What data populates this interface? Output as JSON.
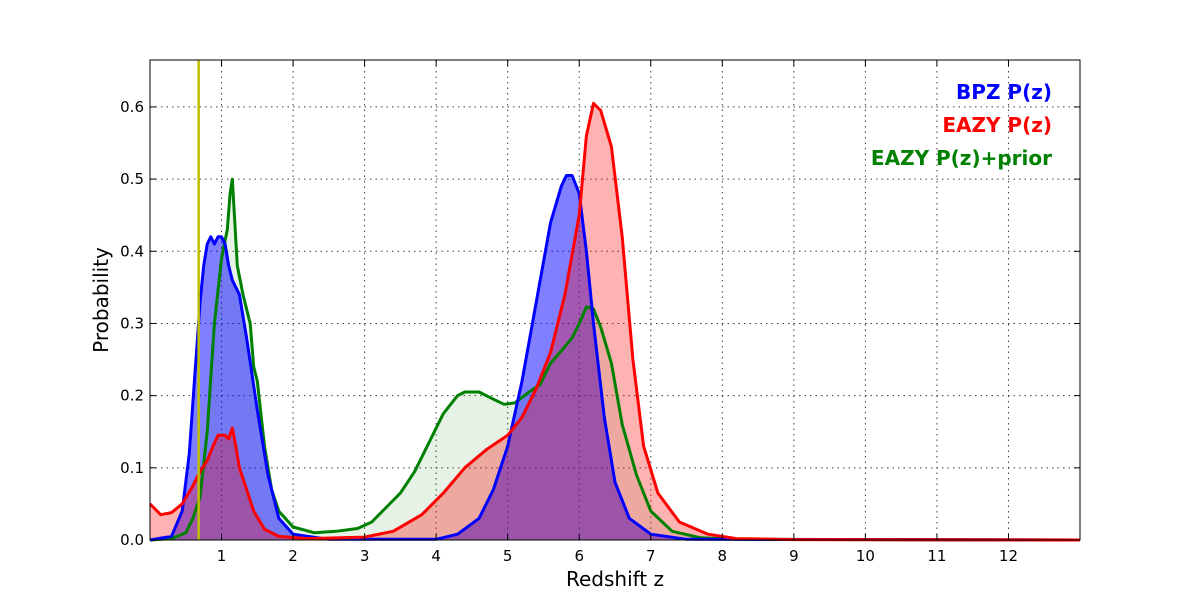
{
  "chart_data": {
    "type": "area",
    "title": "",
    "xlabel": "Redshift z",
    "ylabel": "Probability",
    "xlim": [
      0,
      13
    ],
    "ylim": [
      0,
      0.665
    ],
    "xticks": [
      1,
      2,
      3,
      4,
      5,
      6,
      7,
      8,
      9,
      10,
      11,
      12
    ],
    "yticks": [
      0.0,
      0.1,
      0.2,
      0.3,
      0.4,
      0.5,
      0.6
    ],
    "ytick_labels": [
      "0.0",
      "0.1",
      "0.2",
      "0.3",
      "0.4",
      "0.5",
      "0.6"
    ],
    "grid": true,
    "legend_position": "top-right",
    "marker_line": {
      "x": 0.68,
      "color": "#bfbf00"
    },
    "series": [
      {
        "name": "EAZY P(z)+prior",
        "color": "#008000",
        "fill": "#008000",
        "fill_opacity": 0.1,
        "points": [
          [
            0,
            0
          ],
          [
            0.3,
            0.002
          ],
          [
            0.5,
            0.01
          ],
          [
            0.6,
            0.03
          ],
          [
            0.7,
            0.06
          ],
          [
            0.8,
            0.15
          ],
          [
            0.9,
            0.3
          ],
          [
            1.0,
            0.39
          ],
          [
            1.08,
            0.43
          ],
          [
            1.12,
            0.48
          ],
          [
            1.15,
            0.5
          ],
          [
            1.18,
            0.45
          ],
          [
            1.22,
            0.38
          ],
          [
            1.3,
            0.34
          ],
          [
            1.4,
            0.3
          ],
          [
            1.45,
            0.24
          ],
          [
            1.5,
            0.22
          ],
          [
            1.6,
            0.13
          ],
          [
            1.7,
            0.07
          ],
          [
            1.8,
            0.04
          ],
          [
            2.0,
            0.018
          ],
          [
            2.3,
            0.01
          ],
          [
            2.6,
            0.012
          ],
          [
            2.9,
            0.016
          ],
          [
            3.1,
            0.025
          ],
          [
            3.3,
            0.045
          ],
          [
            3.5,
            0.065
          ],
          [
            3.7,
            0.095
          ],
          [
            3.9,
            0.135
          ],
          [
            4.1,
            0.175
          ],
          [
            4.3,
            0.2
          ],
          [
            4.4,
            0.205
          ],
          [
            4.6,
            0.205
          ],
          [
            4.8,
            0.195
          ],
          [
            4.95,
            0.188
          ],
          [
            5.1,
            0.19
          ],
          [
            5.3,
            0.205
          ],
          [
            5.45,
            0.215
          ],
          [
            5.6,
            0.245
          ],
          [
            5.75,
            0.262
          ],
          [
            5.9,
            0.28
          ],
          [
            6.0,
            0.3
          ],
          [
            6.1,
            0.323
          ],
          [
            6.2,
            0.32
          ],
          [
            6.3,
            0.295
          ],
          [
            6.45,
            0.245
          ],
          [
            6.6,
            0.16
          ],
          [
            6.8,
            0.09
          ],
          [
            7.0,
            0.04
          ],
          [
            7.3,
            0.012
          ],
          [
            7.7,
            0.003
          ],
          [
            8.2,
            0.001
          ],
          [
            13,
            0
          ]
        ]
      },
      {
        "name": "BPZ P(z)",
        "color": "#0000ff",
        "fill": "#0000ff",
        "fill_opacity": 0.5,
        "points": [
          [
            0,
            0
          ],
          [
            0.3,
            0.005
          ],
          [
            0.45,
            0.04
          ],
          [
            0.55,
            0.12
          ],
          [
            0.62,
            0.22
          ],
          [
            0.7,
            0.33
          ],
          [
            0.75,
            0.38
          ],
          [
            0.8,
            0.41
          ],
          [
            0.85,
            0.42
          ],
          [
            0.9,
            0.41
          ],
          [
            0.95,
            0.42
          ],
          [
            1.0,
            0.42
          ],
          [
            1.05,
            0.41
          ],
          [
            1.1,
            0.38
          ],
          [
            1.15,
            0.36
          ],
          [
            1.25,
            0.34
          ],
          [
            1.35,
            0.28
          ],
          [
            1.5,
            0.18
          ],
          [
            1.65,
            0.09
          ],
          [
            1.8,
            0.03
          ],
          [
            2.0,
            0.008
          ],
          [
            2.5,
            0.001
          ],
          [
            4.0,
            0.001
          ],
          [
            4.3,
            0.008
          ],
          [
            4.6,
            0.03
          ],
          [
            4.8,
            0.07
          ],
          [
            5.0,
            0.13
          ],
          [
            5.2,
            0.22
          ],
          [
            5.4,
            0.33
          ],
          [
            5.6,
            0.44
          ],
          [
            5.75,
            0.49
          ],
          [
            5.82,
            0.505
          ],
          [
            5.9,
            0.505
          ],
          [
            6.0,
            0.48
          ],
          [
            6.1,
            0.4
          ],
          [
            6.2,
            0.3
          ],
          [
            6.35,
            0.17
          ],
          [
            6.5,
            0.08
          ],
          [
            6.7,
            0.03
          ],
          [
            7.0,
            0.008
          ],
          [
            7.5,
            0.001
          ],
          [
            13,
            0
          ]
        ]
      },
      {
        "name": "EAZY P(z)",
        "color": "#ff0000",
        "fill": "#ff0000",
        "fill_opacity": 0.3,
        "points": [
          [
            0,
            0.05
          ],
          [
            0.05,
            0.045
          ],
          [
            0.15,
            0.035
          ],
          [
            0.3,
            0.038
          ],
          [
            0.45,
            0.05
          ],
          [
            0.6,
            0.075
          ],
          [
            0.7,
            0.095
          ],
          [
            0.8,
            0.11
          ],
          [
            0.88,
            0.13
          ],
          [
            0.95,
            0.145
          ],
          [
            1.05,
            0.145
          ],
          [
            1.1,
            0.14
          ],
          [
            1.15,
            0.155
          ],
          [
            1.2,
            0.13
          ],
          [
            1.25,
            0.1
          ],
          [
            1.35,
            0.07
          ],
          [
            1.45,
            0.04
          ],
          [
            1.6,
            0.015
          ],
          [
            1.8,
            0.005
          ],
          [
            2.2,
            0.002
          ],
          [
            3.0,
            0.004
          ],
          [
            3.4,
            0.012
          ],
          [
            3.8,
            0.035
          ],
          [
            4.1,
            0.065
          ],
          [
            4.4,
            0.1
          ],
          [
            4.7,
            0.125
          ],
          [
            5.0,
            0.145
          ],
          [
            5.2,
            0.17
          ],
          [
            5.4,
            0.21
          ],
          [
            5.6,
            0.26
          ],
          [
            5.8,
            0.34
          ],
          [
            6.0,
            0.45
          ],
          [
            6.1,
            0.56
          ],
          [
            6.2,
            0.605
          ],
          [
            6.3,
            0.595
          ],
          [
            6.45,
            0.545
          ],
          [
            6.6,
            0.42
          ],
          [
            6.75,
            0.25
          ],
          [
            6.9,
            0.13
          ],
          [
            7.1,
            0.065
          ],
          [
            7.4,
            0.025
          ],
          [
            7.8,
            0.008
          ],
          [
            8.2,
            0.002
          ],
          [
            9.0,
            0.0005
          ],
          [
            13,
            0
          ]
        ]
      }
    ],
    "legend": [
      {
        "label": "BPZ P(z)",
        "color": "#0000ff"
      },
      {
        "label": "EAZY P(z)",
        "color": "#ff0000"
      },
      {
        "label": "EAZY P(z)+prior",
        "color": "#008000"
      }
    ]
  }
}
